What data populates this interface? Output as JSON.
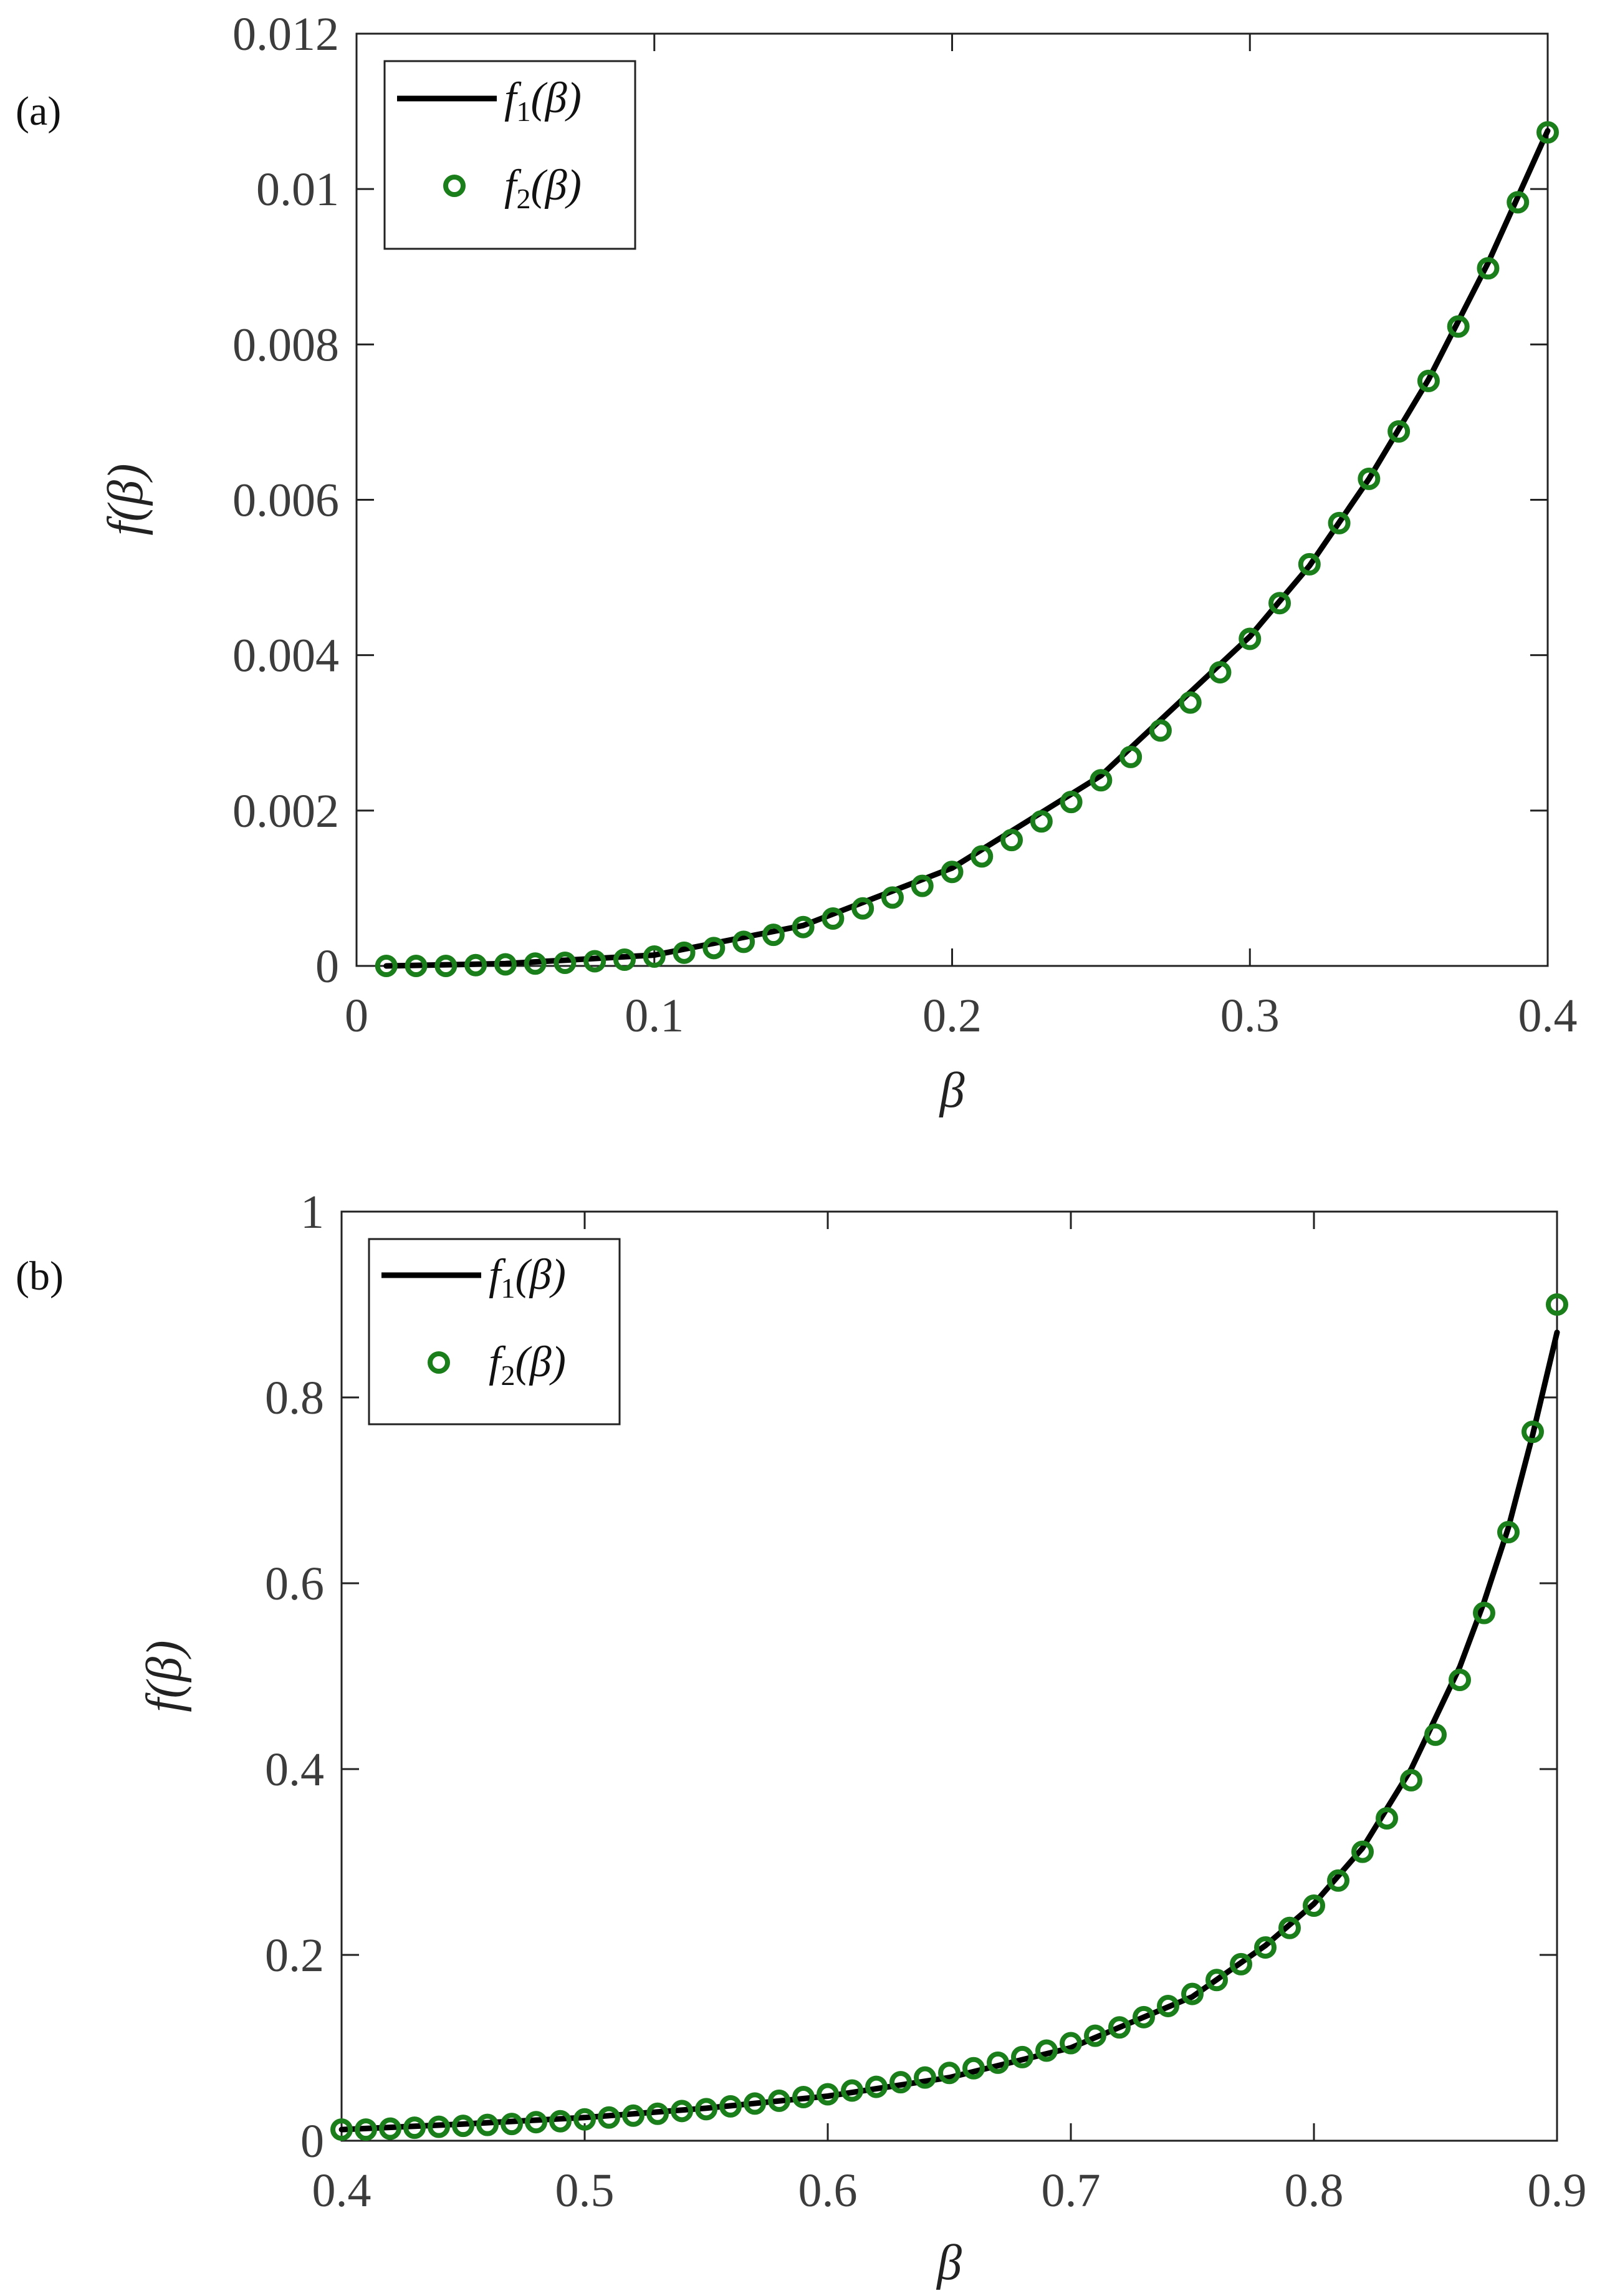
{
  "chart_data": [
    {
      "type": "line",
      "panel_label": "(a)",
      "xlabel": "β",
      "ylabel": "f(β)",
      "xlim": [
        0,
        0.4
      ],
      "ylim": [
        0,
        0.012
      ],
      "xticks": [
        0,
        0.1,
        0.2,
        0.3,
        0.4
      ],
      "xtick_labels": [
        "0",
        "0.1",
        "0.2",
        "0.3",
        "0.4"
      ],
      "yticks": [
        0,
        0.002,
        0.004,
        0.006,
        0.008,
        0.01,
        0.012
      ],
      "ytick_labels": [
        "0",
        "0.002",
        "0.004",
        "0.006",
        "0.008",
        "0.01",
        "0.012"
      ],
      "grid": false,
      "legend_position": "top-left",
      "legend": [
        {
          "name": "f1(β)",
          "label_main": "f",
          "label_sub": "1",
          "label_arg": "(β)",
          "style": "line",
          "color": "#000000"
        },
        {
          "name": "f2(β)",
          "label_main": "f",
          "label_sub": "2",
          "label_arg": "(β)",
          "style": "circle",
          "color": "#1a7f1a"
        }
      ],
      "series": [
        {
          "name": "f1(β)",
          "style": "line",
          "color": "#000000",
          "x": [
            0.01,
            0.05,
            0.1,
            0.15,
            0.2,
            0.25,
            0.3,
            0.32,
            0.34,
            0.36,
            0.38,
            0.4
          ],
          "y": [
            0.0,
            3e-05,
            0.00014,
            0.00052,
            0.00126,
            0.00245,
            0.00424,
            0.00515,
            0.00627,
            0.00755,
            0.00905,
            0.01075
          ]
        },
        {
          "name": "f2(β)",
          "style": "circle",
          "color": "#1a7f1a",
          "x": [
            0.01,
            0.02,
            0.03,
            0.04,
            0.05,
            0.06,
            0.07,
            0.08,
            0.09,
            0.1,
            0.11,
            0.12,
            0.13,
            0.14,
            0.15,
            0.16,
            0.17,
            0.18,
            0.19,
            0.2,
            0.21,
            0.22,
            0.23,
            0.24,
            0.25,
            0.26,
            0.27,
            0.28,
            0.29,
            0.3,
            0.31,
            0.32,
            0.33,
            0.34,
            0.35,
            0.36,
            0.37,
            0.38,
            0.39,
            0.4
          ],
          "y": [
            0.0,
            0.0,
            0.0,
            1e-05,
            2e-05,
            3e-05,
            4e-05,
            6e-05,
            8e-05,
            0.00012,
            0.00017,
            0.00023,
            0.00031,
            0.0004,
            0.0005,
            0.00061,
            0.00074,
            0.00088,
            0.00103,
            0.00121,
            0.00141,
            0.00162,
            0.00186,
            0.00211,
            0.00239,
            0.00269,
            0.00303,
            0.00339,
            0.00378,
            0.00421,
            0.00467,
            0.00517,
            0.0057,
            0.00627,
            0.00688,
            0.00753,
            0.00823,
            0.00898,
            0.00983,
            0.01073
          ]
        }
      ]
    },
    {
      "type": "line",
      "panel_label": "(b)",
      "xlabel": "β",
      "ylabel": "f(β)",
      "xlim": [
        0.4,
        0.9
      ],
      "ylim": [
        0,
        1
      ],
      "xticks": [
        0.4,
        0.5,
        0.6,
        0.7,
        0.8,
        0.9
      ],
      "xtick_labels": [
        "0.4",
        "0.5",
        "0.6",
        "0.7",
        "0.8",
        "0.9"
      ],
      "yticks": [
        0,
        0.2,
        0.4,
        0.6,
        0.8,
        1
      ],
      "ytick_labels": [
        "0",
        "0.2",
        "0.4",
        "0.6",
        "0.8",
        "1"
      ],
      "grid": false,
      "legend_position": "top-left",
      "legend": [
        {
          "name": "f1(β)",
          "label_main": "f",
          "label_sub": "1",
          "label_arg": "(β)",
          "style": "line",
          "color": "#000000"
        },
        {
          "name": "f2(β)",
          "label_main": "f",
          "label_sub": "2",
          "label_arg": "(β)",
          "style": "circle",
          "color": "#1a7f1a"
        }
      ],
      "series": [
        {
          "name": "f1(β)",
          "style": "line",
          "color": "#000000",
          "x": [
            0.4,
            0.45,
            0.5,
            0.55,
            0.6,
            0.65,
            0.7,
            0.75,
            0.78,
            0.8,
            0.82,
            0.84,
            0.86,
            0.87,
            0.88,
            0.89,
            0.9
          ],
          "y": [
            0.012,
            0.018,
            0.025,
            0.035,
            0.048,
            0.068,
            0.1,
            0.155,
            0.21,
            0.255,
            0.315,
            0.4,
            0.51,
            0.58,
            0.66,
            0.76,
            0.87
          ]
        },
        {
          "name": "f2(β)",
          "style": "circle",
          "color": "#1a7f1a",
          "x": [
            0.4,
            0.41,
            0.42,
            0.43,
            0.44,
            0.45,
            0.46,
            0.47,
            0.48,
            0.49,
            0.5,
            0.51,
            0.52,
            0.53,
            0.54,
            0.55,
            0.56,
            0.57,
            0.58,
            0.59,
            0.6,
            0.61,
            0.62,
            0.63,
            0.64,
            0.65,
            0.66,
            0.67,
            0.68,
            0.69,
            0.7,
            0.71,
            0.72,
            0.73,
            0.74,
            0.75,
            0.76,
            0.77,
            0.78,
            0.79,
            0.8,
            0.81,
            0.82,
            0.83,
            0.84,
            0.85,
            0.86,
            0.87,
            0.88,
            0.89,
            0.9
          ],
          "y": [
            0.012,
            0.012,
            0.013,
            0.014,
            0.015,
            0.016,
            0.017,
            0.018,
            0.02,
            0.021,
            0.023,
            0.025,
            0.027,
            0.029,
            0.032,
            0.034,
            0.037,
            0.04,
            0.043,
            0.047,
            0.05,
            0.054,
            0.058,
            0.063,
            0.068,
            0.073,
            0.078,
            0.084,
            0.09,
            0.097,
            0.105,
            0.113,
            0.122,
            0.133,
            0.145,
            0.158,
            0.173,
            0.19,
            0.208,
            0.229,
            0.253,
            0.28,
            0.311,
            0.347,
            0.388,
            0.437,
            0.496,
            0.568,
            0.655,
            0.763,
            0.9
          ]
        }
      ]
    }
  ]
}
